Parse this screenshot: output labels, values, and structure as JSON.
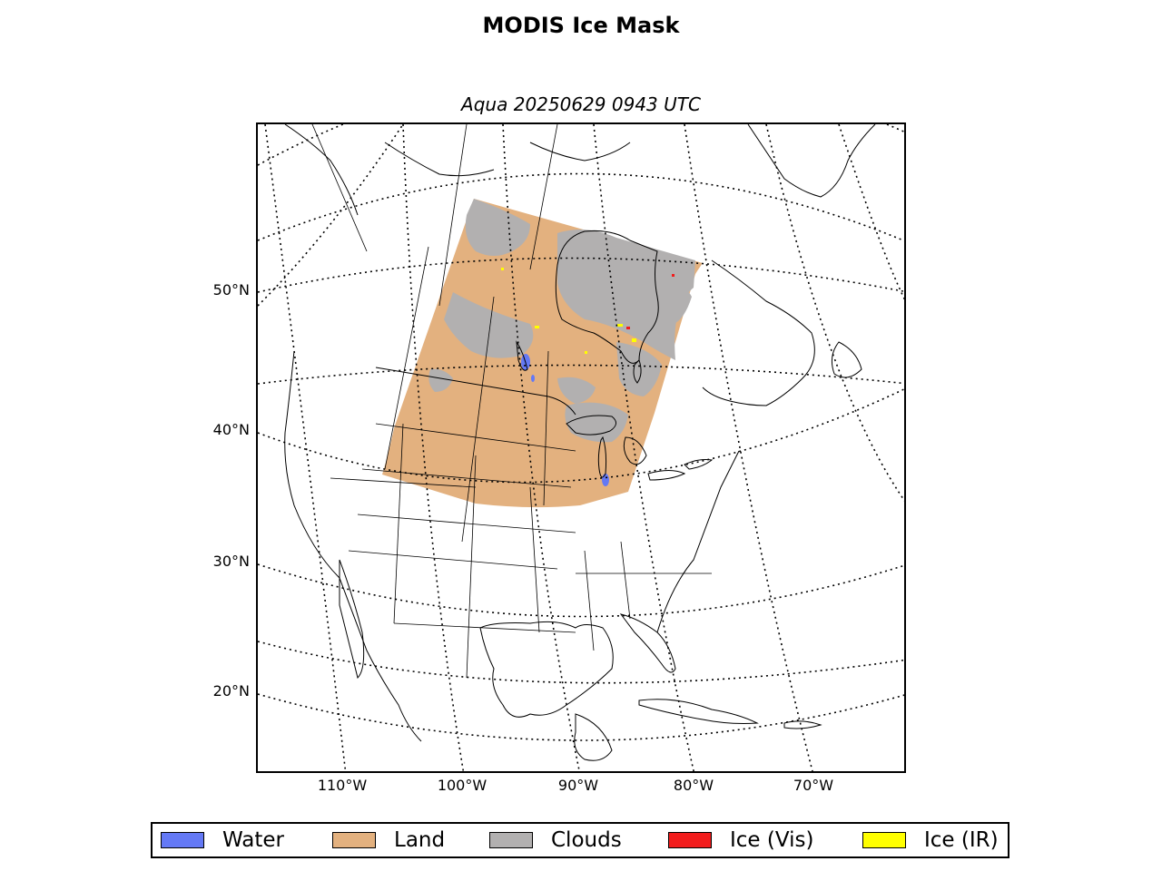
{
  "header": {
    "title": "MODIS Ice Mask",
    "subtitle": "Aqua 20250629 0943 UTC"
  },
  "map": {
    "lat_labels": [
      "50°N",
      "40°N",
      "30°N",
      "20°N"
    ],
    "lon_labels": [
      "110°W",
      "100°W",
      "90°W",
      "80°W",
      "70°W"
    ]
  },
  "legend": {
    "items": [
      {
        "label": "Water",
        "color": "#6479f5"
      },
      {
        "label": "Land",
        "color": "#e3b17f"
      },
      {
        "label": "Clouds",
        "color": "#b2b0b0"
      },
      {
        "label": "Ice (Vis)",
        "color": "#f21c1c"
      },
      {
        "label": "Ice (IR)",
        "color": "#ffff00"
      }
    ]
  }
}
